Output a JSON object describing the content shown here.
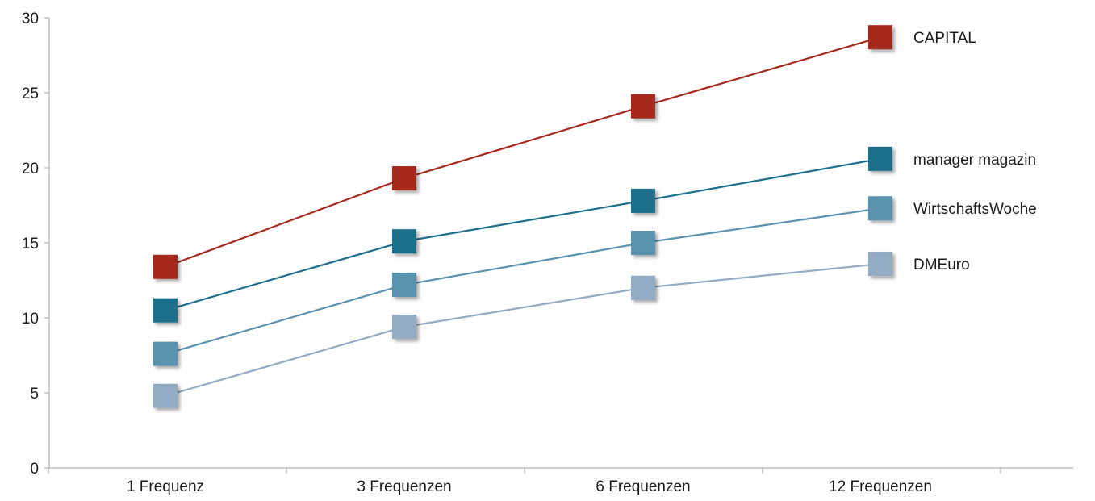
{
  "chart_data": {
    "type": "line",
    "title": "",
    "xlabel": "",
    "ylabel": "",
    "categories": [
      "1 Frequenz",
      "3 Frequenzen",
      "6 Frequenzen",
      "12 Frequenzen"
    ],
    "ylim": [
      0,
      30
    ],
    "yticks": [
      0,
      5,
      10,
      15,
      20,
      25,
      30
    ],
    "grid": false,
    "legend": "inline-right",
    "series": [
      {
        "name": "CAPITAL",
        "color": "#a6291f",
        "values": [
          13.4,
          19.3,
          24.1,
          28.7
        ]
      },
      {
        "name": "manager magazin",
        "color": "#1d6f8c",
        "values": [
          10.5,
          15.1,
          17.8,
          20.6
        ]
      },
      {
        "name": "WirtschaftsWoche",
        "color": "#5a93b0",
        "values": [
          7.6,
          12.2,
          15.0,
          17.3
        ]
      },
      {
        "name": "DMEuro",
        "color": "#93abc3",
        "values": [
          4.8,
          9.4,
          12.0,
          13.6
        ]
      }
    ]
  }
}
